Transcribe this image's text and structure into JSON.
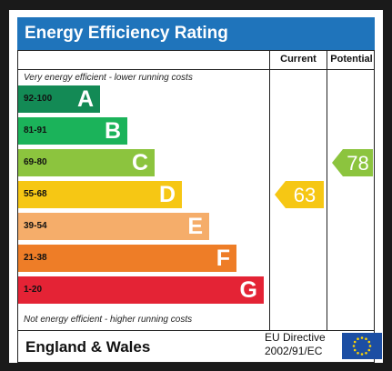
{
  "title": "Energy Efficiency Rating",
  "columns": {
    "current": "Current",
    "potential": "Potential"
  },
  "top_note": "Very energy efficient - lower running costs",
  "bottom_note": "Not energy efficient - higher running costs",
  "footer": {
    "region": "England & Wales",
    "directive_line1": "EU Directive",
    "directive_line2": "2002/91/EC"
  },
  "chart_data": {
    "type": "bar",
    "categories": [
      "A",
      "B",
      "C",
      "D",
      "E",
      "F",
      "G"
    ],
    "bands": [
      {
        "letter": "A",
        "range": "92-100",
        "color": "#138a55"
      },
      {
        "letter": "B",
        "range": "81-91",
        "color": "#1bb35a"
      },
      {
        "letter": "C",
        "range": "69-80",
        "color": "#8cc43e"
      },
      {
        "letter": "D",
        "range": "55-68",
        "color": "#f6c714"
      },
      {
        "letter": "E",
        "range": "39-54",
        "color": "#f5ad6a"
      },
      {
        "letter": "F",
        "range": "21-38",
        "color": "#ee7d27"
      },
      {
        "letter": "G",
        "range": "1-20",
        "color": "#e42335"
      }
    ],
    "current": {
      "value": 63,
      "band": "D",
      "color": "#f6c714"
    },
    "potential": {
      "value": 78,
      "band": "C",
      "color": "#8cc43e"
    }
  }
}
